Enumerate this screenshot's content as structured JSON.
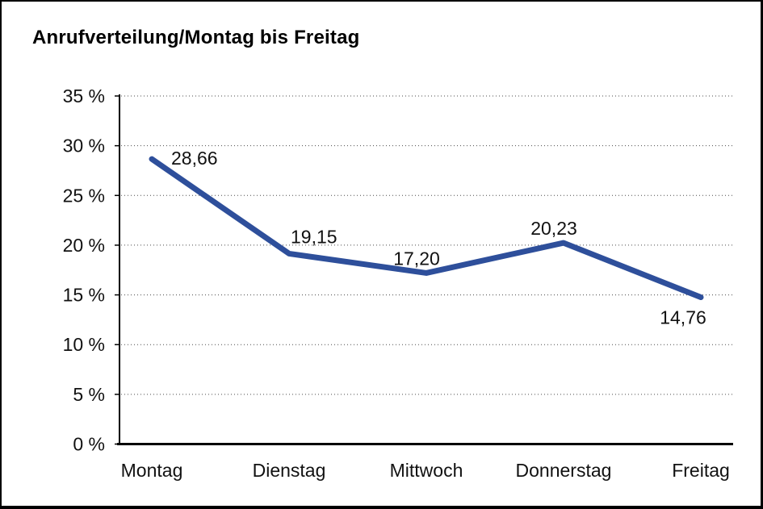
{
  "window": {
    "background": "#ffffff",
    "border_color": "#000000"
  },
  "chart_data": {
    "type": "line",
    "title": "Anrufverteilung/Montag bis Freitag",
    "categories": [
      "Montag",
      "Dienstag",
      "Mittwoch",
      "Donnerstag",
      "Freitag"
    ],
    "series": [
      {
        "name": "Anrufverteilung",
        "values": [
          28.66,
          19.15,
          17.2,
          20.23,
          14.76
        ],
        "labels": [
          "28,66",
          "19,15",
          "17,20",
          "20,23",
          "14,76"
        ],
        "color": "#2e4f9b",
        "line_width": 7
      }
    ],
    "xlabel": "",
    "ylabel": "",
    "ylim": [
      0,
      35
    ],
    "ytick_step": 5,
    "ytick_labels": [
      "0 %",
      "5 %",
      "10 %",
      "15 %",
      "20 %",
      "25 %",
      "30 %",
      "35 %"
    ],
    "grid": "horizontal-dotted",
    "legend": "none",
    "markers": "none",
    "text_color": "#111111",
    "grid_color": "#4a4a4a"
  }
}
